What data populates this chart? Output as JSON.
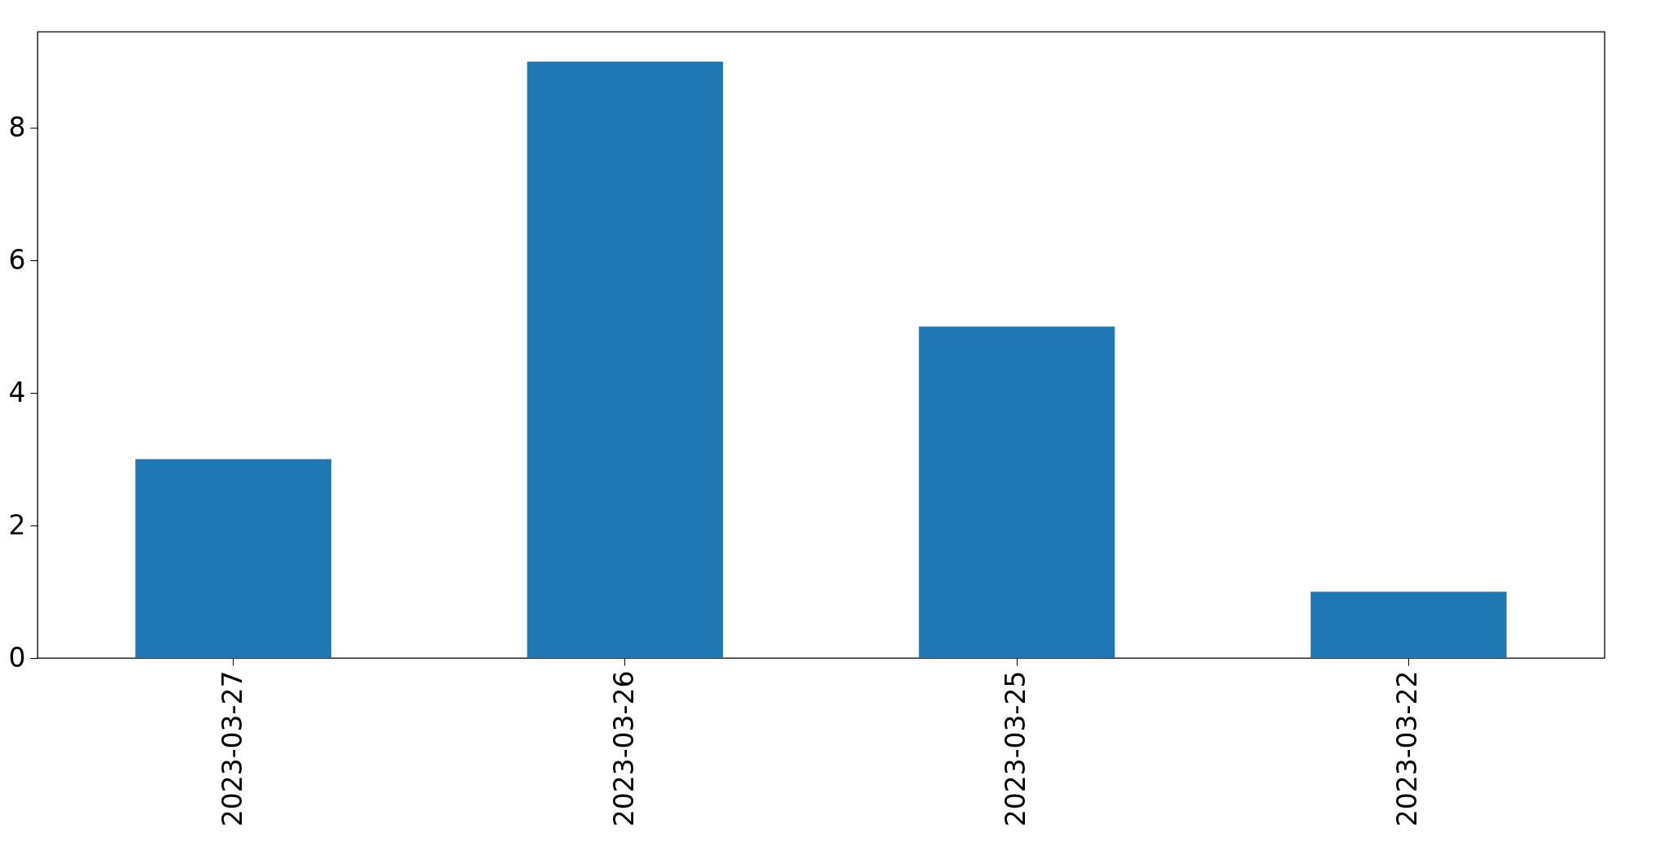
{
  "chart_data": {
    "type": "bar",
    "categories": [
      "2023-03-27",
      "2023-03-26",
      "2023-03-25",
      "2023-03-22"
    ],
    "values": [
      3,
      9,
      5,
      1
    ],
    "color": "#1f77b4",
    "ylim": [
      0,
      9.45
    ],
    "yticks": [
      0,
      2,
      4,
      6,
      8
    ],
    "grid": false
  }
}
